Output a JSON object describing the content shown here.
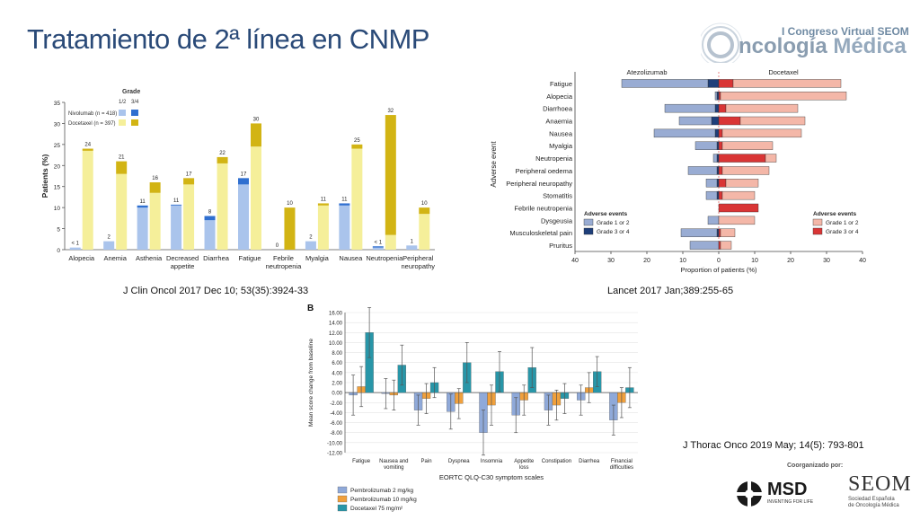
{
  "slide": {
    "title": "Tratamiento de 2ª línea en CNMP",
    "logo_line1": "I Congreso Virtual SEOM",
    "logo_word1": "ncología",
    "logo_word2": "Médica",
    "citations": [
      "J Clin Oncol  2017 Dec 10; 53(35):3924-33",
      "Lancet  2017 Jan;389:255-65",
      "J Thorac Onco 2019 May; 14(5): 793-801"
    ],
    "coorganized": "Coorganizado por:",
    "msd_name": "MSD",
    "msd_tag": "INVENTING FOR LIFE",
    "seom_name": "SEOM",
    "seom_sub1": "Sociedad Española",
    "seom_sub2": "de Oncología Médica",
    "colors": {
      "title": "#2a4a78",
      "nivo12": "#aac4ec",
      "nivo34": "#2f6fd0",
      "doce12": "#f5ef9a",
      "doce34": "#d2b414",
      "atezo12": "#99acd3",
      "atezo34": "#1e3f7a",
      "docL12": "#f4b7a8",
      "docL34": "#d93535"
    }
  },
  "chart_data": [
    {
      "type": "bar",
      "ylabel": "Patients (%)",
      "ylim": [
        0,
        35
      ],
      "yticks": [
        0,
        5,
        10,
        15,
        20,
        25,
        30,
        35
      ],
      "legend_title": "Grade",
      "legend_cols": [
        "1/2",
        "3/4"
      ],
      "categories": [
        "Alopecia",
        "Anemia",
        "Asthenia",
        "Decreased appetite",
        "Diarrhea",
        "Fatigue",
        "Febrile neutropenia",
        "Myalgia",
        "Nausea",
        "Neutropenia",
        "Peripheral neuropathy"
      ],
      "category_lines": [
        [
          "Alopecia"
        ],
        [
          "Anemia"
        ],
        [
          "Asthenia"
        ],
        [
          "Decreased",
          "appetite"
        ],
        [
          "Diarrhea"
        ],
        [
          "Fatigue"
        ],
        [
          "Febrile",
          "neutropenia"
        ],
        [
          "Myalgia"
        ],
        [
          "Nausea"
        ],
        [
          "Neutropenia"
        ],
        [
          "Peripheral",
          "neuropathy"
        ]
      ],
      "series": [
        {
          "name": "Nivolumab (n = 418)",
          "grade12": [
            0.5,
            2,
            10,
            10.5,
            7,
            15.5,
            0,
            2,
            10.5,
            0.5,
            1
          ],
          "grade34": [
            0,
            0,
            0.5,
            0.2,
            1,
            1.5,
            0,
            0,
            0.5,
            0.3,
            0
          ],
          "labels": [
            "< 1",
            "2",
            "11",
            "11",
            "8",
            "17",
            "0",
            "2",
            "11",
            "< 1",
            "1"
          ]
        },
        {
          "name": "Docetaxel (n = 397)",
          "grade12": [
            23.5,
            18,
            13.5,
            15.5,
            20.5,
            24.5,
            0,
            10.5,
            24,
            3.5,
            8.5
          ],
          "grade34": [
            0.5,
            3,
            2.5,
            1.5,
            1.5,
            5.5,
            10,
            0.5,
            1,
            28.5,
            1.5
          ],
          "labels": [
            "24",
            "21",
            "16",
            "17",
            "22",
            "30",
            "10",
            "11",
            "25",
            "32",
            "10"
          ]
        }
      ]
    },
    {
      "type": "bar",
      "orientation": "horizontal-butterfly",
      "ylabel": "Adverse event",
      "xlabel": "Proportion of patients (%)",
      "xlim": [
        -40,
        40
      ],
      "xticks": [
        "40",
        "30",
        "20",
        "10",
        "0",
        "10",
        "20",
        "30",
        "40"
      ],
      "left_header": "Atezolizumab",
      "right_header": "Docetaxel",
      "categories": [
        "Fatigue",
        "Alopecia",
        "Diarrhoea",
        "Anaemia",
        "Nausea",
        "Myalgia",
        "Neutropenia",
        "Peripheral oedema",
        "Peripheral neuropathy",
        "Stomatitis",
        "Febrile neutropenia",
        "Dysgeusia",
        "Musculoskeletal pain",
        "Pruritus"
      ],
      "atezolizumab_g12": [
        24,
        0.5,
        14,
        9,
        17,
        6,
        1,
        8,
        3,
        3,
        0,
        3,
        10,
        8
      ],
      "atezolizumab_g34": [
        3,
        0.5,
        1,
        2,
        1,
        0.5,
        0.5,
        0.5,
        0.5,
        0.5,
        0,
        0,
        0.5,
        0
      ],
      "docetaxel_g12": [
        30,
        35,
        20,
        18,
        22,
        14,
        3,
        13,
        9,
        9,
        0,
        10,
        4,
        3
      ],
      "docetaxel_g34": [
        4,
        0.5,
        2,
        6,
        1,
        1,
        13,
        1,
        2,
        1,
        11,
        0,
        0.5,
        0.5
      ],
      "legend_left_title": "Adverse events",
      "legend_left": [
        "Grade 1 or 2",
        "Grade 3 or 4"
      ],
      "legend_right_title": "Adverse events",
      "legend_right": [
        "Grade 1 or 2",
        "Grade 3 or 4"
      ]
    },
    {
      "type": "bar",
      "panel_label": "B",
      "ylabel": "Mean score change from baseline",
      "xlabel": "EORTC QLQ-C30 symptom scales",
      "ylim": [
        -12,
        16
      ],
      "yticks": [
        "-12.00",
        "-10.00",
        "-8.00",
        "-6.00",
        "-4.00",
        "-2.00",
        "0.00",
        "2.00",
        "4.00",
        "6.00",
        "8.00",
        "10.00",
        "12.00",
        "14.00",
        "16.00"
      ],
      "categories": [
        "Fatigue",
        "Nausea and vomiting",
        "Pain",
        "Dyspnea",
        "Insomnia",
        "Appetite loss",
        "Constipation",
        "Diarrhea",
        "Financial difficulties"
      ],
      "category_lines": [
        [
          "Fatigue"
        ],
        [
          "Nausea and",
          "vomiting"
        ],
        [
          "Pain"
        ],
        [
          "Dyspnea"
        ],
        [
          "Insomnia"
        ],
        [
          "Appetite",
          "loss"
        ],
        [
          "Constipation"
        ],
        [
          "Diarrhea"
        ],
        [
          "Financial",
          "difficulties"
        ]
      ],
      "series": [
        {
          "name": "Pembrolizumab 2 mg/kg",
          "color": "#8fa9d9",
          "values": [
            -0.5,
            -0.2,
            -3.5,
            -3.8,
            -8,
            -4.5,
            -3.5,
            -1.5,
            -5.5
          ],
          "errors": [
            4,
            3,
            3,
            3.5,
            4.5,
            3.5,
            3,
            3,
            3
          ]
        },
        {
          "name": "Pembrolizumab 10 mg/kg",
          "color": "#f0a03c",
          "values": [
            1.2,
            -0.5,
            -1.2,
            -2.2,
            -2.5,
            -1.5,
            -2.5,
            1.0,
            -2.0
          ],
          "errors": [
            4,
            3,
            3,
            3,
            4,
            3,
            3,
            3,
            3
          ]
        },
        {
          "name": "Docetaxel 75 mg/m²",
          "color": "#2896a8",
          "values": [
            12,
            5.5,
            2,
            6,
            4.2,
            5,
            -1.2,
            4.2,
            1
          ],
          "errors": [
            5,
            4,
            3,
            4,
            4,
            4,
            3,
            3,
            4
          ]
        }
      ]
    }
  ]
}
